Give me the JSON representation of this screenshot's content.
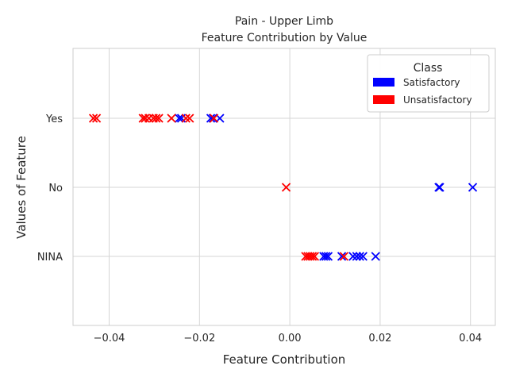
{
  "chart_data": {
    "type": "scatter",
    "title": "Pain - Upper Limb",
    "subtitle": "Feature Contribution by Value",
    "xlabel": "Feature Contribution",
    "ylabel": "Values of Feature",
    "xlim": [
      -0.048,
      0.0455
    ],
    "categories": [
      "Yes",
      "No",
      "NINA"
    ],
    "x_ticks": [
      -0.04,
      -0.02,
      0.0,
      0.02,
      0.04
    ],
    "x_tick_labels": [
      "−0.04",
      "−0.02",
      "0.00",
      "0.02",
      "0.04"
    ],
    "grid": true,
    "marker": "x",
    "legend": {
      "title": "Class",
      "placement": "top-right",
      "entries": [
        {
          "label": "Satisfactory",
          "color": "#0000ff"
        },
        {
          "label": "Unsatisfactory",
          "color": "#ff0000"
        }
      ]
    },
    "series": [
      {
        "name": "Satisfactory",
        "color": "#0000ff",
        "points": [
          {
            "x": -0.0245,
            "y": "Yes"
          },
          {
            "x": -0.024,
            "y": "Yes"
          },
          {
            "x": -0.0175,
            "y": "Yes"
          },
          {
            "x": -0.017,
            "y": "Yes"
          },
          {
            "x": -0.0155,
            "y": "Yes"
          },
          {
            "x": 0.033,
            "y": "No"
          },
          {
            "x": 0.0332,
            "y": "No"
          },
          {
            "x": 0.0405,
            "y": "No"
          },
          {
            "x": 0.0075,
            "y": "NINA"
          },
          {
            "x": 0.008,
            "y": "NINA"
          },
          {
            "x": 0.0085,
            "y": "NINA"
          },
          {
            "x": 0.0115,
            "y": "NINA"
          },
          {
            "x": 0.014,
            "y": "NINA"
          },
          {
            "x": 0.0148,
            "y": "NINA"
          },
          {
            "x": 0.0155,
            "y": "NINA"
          },
          {
            "x": 0.0162,
            "y": "NINA"
          },
          {
            "x": 0.019,
            "y": "NINA"
          }
        ]
      },
      {
        "name": "Unsatisfactory",
        "color": "#ff0000",
        "points": [
          {
            "x": -0.0435,
            "y": "Yes"
          },
          {
            "x": -0.0428,
            "y": "Yes"
          },
          {
            "x": -0.0325,
            "y": "Yes"
          },
          {
            "x": -0.032,
            "y": "Yes"
          },
          {
            "x": -0.0312,
            "y": "Yes"
          },
          {
            "x": -0.0302,
            "y": "Yes"
          },
          {
            "x": -0.0296,
            "y": "Yes"
          },
          {
            "x": -0.029,
            "y": "Yes"
          },
          {
            "x": -0.0262,
            "y": "Yes"
          },
          {
            "x": -0.023,
            "y": "Yes"
          },
          {
            "x": -0.0222,
            "y": "Yes"
          },
          {
            "x": -0.0168,
            "y": "Yes"
          },
          {
            "x": -0.0008,
            "y": "No"
          },
          {
            "x": 0.0035,
            "y": "NINA"
          },
          {
            "x": 0.004,
            "y": "NINA"
          },
          {
            "x": 0.0045,
            "y": "NINA"
          },
          {
            "x": 0.005,
            "y": "NINA"
          },
          {
            "x": 0.0055,
            "y": "NINA"
          },
          {
            "x": 0.012,
            "y": "NINA"
          }
        ]
      }
    ]
  }
}
